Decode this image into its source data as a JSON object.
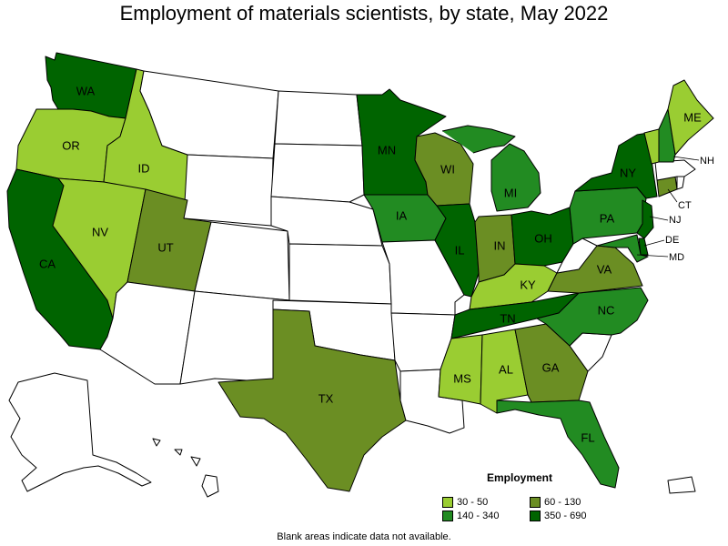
{
  "title": "Employment of materials scientists, by state, May 2022",
  "legend": {
    "title": "Employment",
    "bins": [
      {
        "label": "30 - 50",
        "color": "#9acd32"
      },
      {
        "label": "60 - 130",
        "color": "#6b8e23"
      },
      {
        "label": "140 - 340",
        "color": "#228b22"
      },
      {
        "label": "350 - 690",
        "color": "#006400"
      }
    ]
  },
  "note": "Blank areas indicate data not available.",
  "colors": {
    "no_data": "#ffffff"
  },
  "states": {
    "WA": "350 - 690",
    "OR": "30 - 50",
    "ID": "30 - 50",
    "CA": "350 - 690",
    "NV": "30 - 50",
    "UT": "60 - 130",
    "TX": "60 - 130",
    "MN": "350 - 690",
    "IA": "140 - 340",
    "WI": "60 - 130",
    "IL": "350 - 690",
    "MI": "140 - 340",
    "IN": "60 - 130",
    "OH": "350 - 690",
    "KY": "30 - 50",
    "TN": "350 - 690",
    "MS": "30 - 50",
    "AL": "30 - 50",
    "GA": "60 - 130",
    "FL": "140 - 340",
    "NC": "140 - 340",
    "VA": "60 - 130",
    "PA": "140 - 340",
    "NY": "350 - 690",
    "NJ": "350 - 690",
    "DE": "350 - 690",
    "MD": "140 - 340",
    "CT": "60 - 130",
    "NH": "140 - 340",
    "ME": "30 - 50",
    "VT": "30 - 50",
    "MT": "",
    "WY": "",
    "CO": "",
    "ND": "",
    "SD": "",
    "NE": "",
    "KS": "",
    "OK": "",
    "NM": "",
    "AZ": "",
    "MO": "",
    "AR": "",
    "LA": "",
    "SC": "",
    "WV": "",
    "MA": "",
    "RI": "",
    "AK": "",
    "HI": "",
    "PR": ""
  }
}
